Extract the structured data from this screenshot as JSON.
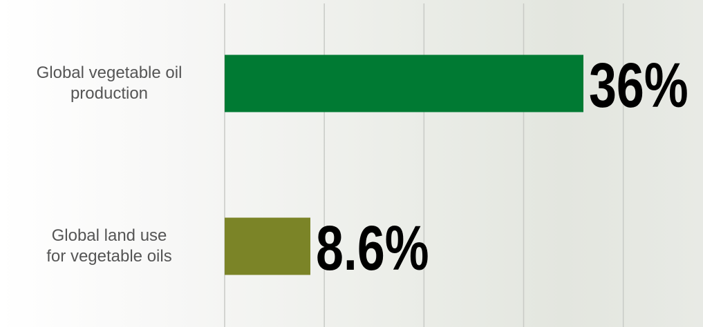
{
  "chart_data": {
    "type": "hbar",
    "categories": [
      "Global vegetable oil\nproduction",
      "Global land use\nfor vegetable oils"
    ],
    "values": [
      36,
      8.6
    ],
    "value_labels": [
      "36%",
      "8.6%"
    ],
    "colors": [
      "#007a33",
      "#7b8427"
    ],
    "xlim": [
      0,
      48
    ],
    "xticks": [
      0,
      10,
      20,
      30,
      40
    ],
    "grid": true
  }
}
